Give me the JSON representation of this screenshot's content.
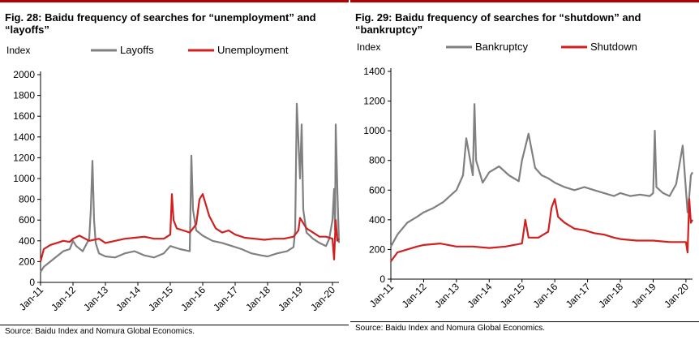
{
  "chart_data": [
    {
      "type": "line",
      "title": "Fig. 28: Baidu frequency of searches for “unemployment” and “layoffs”",
      "ylabel": "Index",
      "ylim": [
        0,
        2000
      ],
      "yticks": [
        0,
        200,
        400,
        600,
        800,
        1000,
        1200,
        1400,
        1600,
        1800,
        2000
      ],
      "xlim": [
        2011.0,
        2020.2
      ],
      "xticks": [
        {
          "label": "Jan-11",
          "x": 2011
        },
        {
          "label": "Jan-12",
          "x": 2012
        },
        {
          "label": "Jan-13",
          "x": 2013
        },
        {
          "label": "Jan-14",
          "x": 2014
        },
        {
          "label": "Jan-15",
          "x": 2015
        },
        {
          "label": "Jan-16",
          "x": 2016
        },
        {
          "label": "Jan-17",
          "x": 2017
        },
        {
          "label": "Jan-18",
          "x": 2018
        },
        {
          "label": "Jan-19",
          "x": 2019
        },
        {
          "label": "Jan-20",
          "x": 2020
        }
      ],
      "legend": "top",
      "series": [
        {
          "name": "Layoffs",
          "color": "#808080",
          "x": [
            2011.0,
            2011.1,
            2011.3,
            2011.5,
            2011.7,
            2011.9,
            2012.0,
            2012.1,
            2012.3,
            2012.5,
            2012.55,
            2012.6,
            2012.65,
            2012.7,
            2012.8,
            2013.0,
            2013.3,
            2013.6,
            2013.9,
            2014.2,
            2014.5,
            2014.8,
            2015.0,
            2015.3,
            2015.6,
            2015.65,
            2015.7,
            2015.8,
            2016.0,
            2016.3,
            2016.6,
            2016.9,
            2017.2,
            2017.5,
            2017.8,
            2018.0,
            2018.3,
            2018.6,
            2018.8,
            2018.85,
            2018.9,
            2019.0,
            2019.05,
            2019.1,
            2019.2,
            2019.4,
            2019.6,
            2019.8,
            2019.9,
            2020.0,
            2020.05,
            2020.08,
            2020.1,
            2020.15,
            2020.2
          ],
          "values": [
            100,
            150,
            200,
            250,
            300,
            320,
            400,
            350,
            300,
            420,
            700,
            1170,
            600,
            380,
            280,
            250,
            240,
            280,
            300,
            260,
            240,
            280,
            350,
            320,
            300,
            1220,
            700,
            500,
            450,
            400,
            380,
            350,
            320,
            280,
            260,
            250,
            280,
            300,
            340,
            500,
            1720,
            1000,
            1520,
            700,
            480,
            420,
            380,
            350,
            420,
            600,
            900,
            500,
            1520,
            900,
            380
          ]
        },
        {
          "name": "Unemployment",
          "color": "#d12020",
          "x": [
            2011.0,
            2011.1,
            2011.3,
            2011.5,
            2011.7,
            2011.9,
            2012.0,
            2012.2,
            2012.5,
            2012.8,
            2013.0,
            2013.3,
            2013.6,
            2013.9,
            2014.2,
            2014.5,
            2014.8,
            2015.0,
            2015.05,
            2015.1,
            2015.2,
            2015.4,
            2015.6,
            2015.8,
            2015.9,
            2016.0,
            2016.2,
            2016.4,
            2016.6,
            2016.8,
            2017.0,
            2017.3,
            2017.6,
            2017.9,
            2018.2,
            2018.5,
            2018.8,
            2018.95,
            2019.0,
            2019.2,
            2019.4,
            2019.6,
            2019.8,
            2020.0,
            2020.05,
            2020.1,
            2020.15,
            2020.2
          ],
          "values": [
            200,
            320,
            360,
            380,
            400,
            390,
            420,
            450,
            400,
            420,
            380,
            400,
            420,
            430,
            440,
            420,
            420,
            460,
            850,
            600,
            520,
            500,
            480,
            560,
            800,
            850,
            640,
            520,
            480,
            500,
            460,
            430,
            420,
            410,
            420,
            420,
            440,
            500,
            620,
            520,
            480,
            440,
            440,
            420,
            220,
            600,
            400,
            420
          ]
        }
      ]
    },
    {
      "type": "line",
      "title": "Fig. 29: Baidu frequency of searches for “shutdown” and “bankruptcy”",
      "ylabel": "Index",
      "ylim": [
        0,
        1400
      ],
      "yticks": [
        0,
        200,
        400,
        600,
        800,
        1000,
        1200,
        1400
      ],
      "xlim": [
        2011.0,
        2020.2
      ],
      "xticks": [
        {
          "label": "Jan-11",
          "x": 2011
        },
        {
          "label": "Jan-12",
          "x": 2012
        },
        {
          "label": "Jan-13",
          "x": 2013
        },
        {
          "label": "Jan-14",
          "x": 2014
        },
        {
          "label": "Jan-15",
          "x": 2015
        },
        {
          "label": "Jan-16",
          "x": 2016
        },
        {
          "label": "Jan-17",
          "x": 2017
        },
        {
          "label": "Jan-18",
          "x": 2018
        },
        {
          "label": "Jan-19",
          "x": 2019
        },
        {
          "label": "Jan-20",
          "x": 2020
        }
      ],
      "legend": "top",
      "series": [
        {
          "name": "Bankruptcy",
          "color": "#808080",
          "x": [
            2011.0,
            2011.2,
            2011.5,
            2011.8,
            2012.0,
            2012.3,
            2012.6,
            2012.9,
            2013.0,
            2013.2,
            2013.3,
            2013.5,
            2013.55,
            2013.6,
            2013.8,
            2014.0,
            2014.3,
            2014.6,
            2014.9,
            2015.0,
            2015.2,
            2015.4,
            2015.6,
            2015.8,
            2016.0,
            2016.3,
            2016.6,
            2016.9,
            2017.2,
            2017.5,
            2017.8,
            2018.0,
            2018.3,
            2018.6,
            2018.9,
            2019.0,
            2019.05,
            2019.1,
            2019.3,
            2019.5,
            2019.7,
            2019.9,
            2020.0,
            2020.05,
            2020.1,
            2020.15,
            2020.2
          ],
          "values": [
            220,
            300,
            380,
            420,
            450,
            480,
            520,
            580,
            600,
            700,
            950,
            700,
            1180,
            800,
            650,
            720,
            760,
            700,
            660,
            800,
            980,
            750,
            700,
            680,
            650,
            620,
            600,
            620,
            600,
            580,
            560,
            580,
            560,
            570,
            560,
            580,
            1000,
            620,
            580,
            560,
            640,
            900,
            600,
            450,
            560,
            700,
            720
          ]
        },
        {
          "name": "Shutdown",
          "color": "#d12020",
          "x": [
            2011.0,
            2011.2,
            2011.5,
            2011.8,
            2012.0,
            2012.5,
            2013.0,
            2013.5,
            2014.0,
            2014.5,
            2015.0,
            2015.1,
            2015.2,
            2015.5,
            2015.8,
            2015.9,
            2016.0,
            2016.1,
            2016.3,
            2016.6,
            2016.9,
            2017.2,
            2017.5,
            2017.8,
            2018.0,
            2018.5,
            2019.0,
            2019.5,
            2019.9,
            2020.0,
            2020.05,
            2020.1,
            2020.15,
            2020.2
          ],
          "values": [
            120,
            180,
            200,
            220,
            230,
            240,
            220,
            220,
            210,
            220,
            240,
            400,
            280,
            280,
            320,
            480,
            540,
            420,
            380,
            340,
            330,
            310,
            300,
            280,
            270,
            260,
            260,
            250,
            250,
            250,
            180,
            540,
            380,
            400
          ]
        }
      ]
    }
  ],
  "panels": [
    {
      "source": "Source: Baidu Index and Nomura Global Economics."
    },
    {
      "source": "Source: Baidu Index and Nomura Global Economics."
    }
  ]
}
